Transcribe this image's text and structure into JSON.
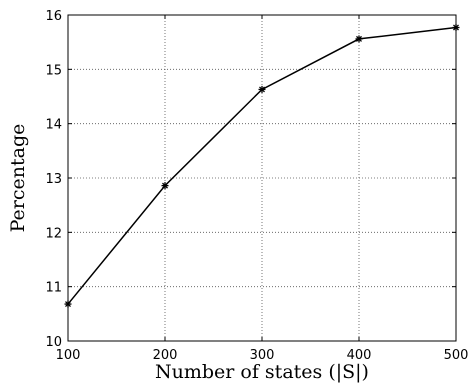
{
  "chart_data": {
    "type": "line",
    "title": "",
    "xlabel": "Number of states (|S|)",
    "ylabel": "Percentage",
    "x": [
      100,
      200,
      300,
      400,
      500
    ],
    "series": [
      {
        "values": [
          10.68,
          12.86,
          14.63,
          15.56,
          15.77
        ]
      }
    ],
    "xlim": [
      100,
      500
    ],
    "ylim": [
      10,
      16
    ],
    "xticks": [
      "100",
      "200",
      "300",
      "400",
      "500"
    ],
    "yticks": [
      "10",
      "11",
      "12",
      "13",
      "14",
      "15",
      "16"
    ],
    "grid": true,
    "marker": "asterisk",
    "line_color": "#000000"
  }
}
